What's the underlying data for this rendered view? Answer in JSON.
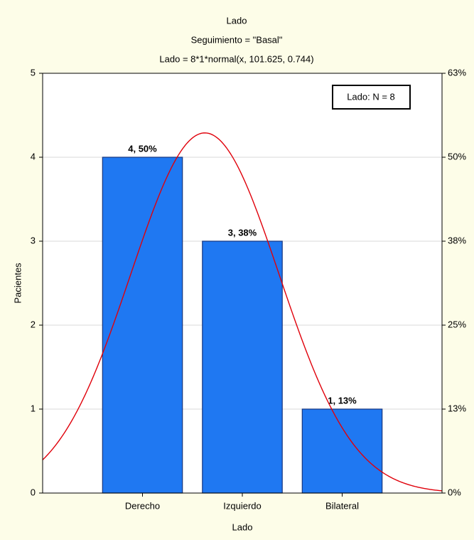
{
  "chart_data": {
    "type": "bar",
    "title": "Lado",
    "subtitle": "Seguimiento = \"Basal\"",
    "formula": "Lado = 8*1*normal(x, 101.625, 0.744)",
    "xlabel": "Lado",
    "ylabel": "Pacientes",
    "legend_text": "Lado:  N = 8",
    "categories": [
      "Derecho",
      "Izquierdo",
      "Bilateral"
    ],
    "x": [
      101,
      102,
      103
    ],
    "xlim": [
      100,
      104
    ],
    "values": [
      4,
      3,
      1
    ],
    "value_labels": [
      "4, 50%",
      "3, 38%",
      "1, 13%"
    ],
    "color": "#1f78f2",
    "ylim": [
      0,
      5
    ],
    "yticks": [
      0,
      1,
      2,
      3,
      4,
      5
    ],
    "y2lim": [
      0,
      62.5
    ],
    "y2ticks": [
      {
        "value": 0,
        "label": "0%"
      },
      {
        "value": 12.5,
        "label": "13%"
      },
      {
        "value": 25,
        "label": "25%"
      },
      {
        "value": 37.5,
        "label": "38%"
      },
      {
        "value": 50,
        "label": "50%"
      },
      {
        "value": 62.5,
        "label": "63%"
      }
    ],
    "grid": true,
    "fit": {
      "n": 8,
      "mean": 101.625,
      "sd": 0.744,
      "color": "#e0000a"
    }
  }
}
